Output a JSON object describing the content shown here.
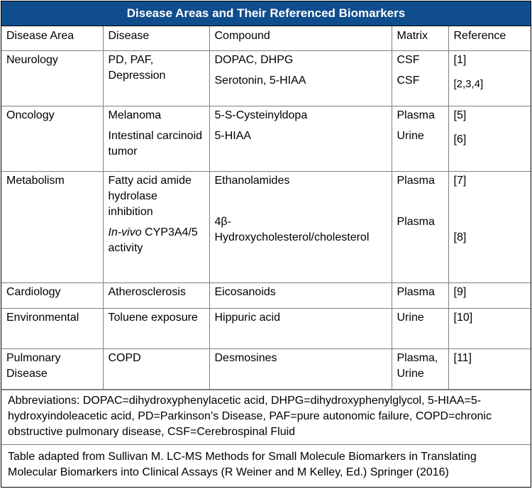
{
  "title": "Disease Areas and Their Referenced Biomarkers",
  "headers": {
    "area": "Disease Area",
    "disease": "Disease",
    "compound": "Compound",
    "matrix": "Matrix",
    "reference": "Reference"
  },
  "rows": {
    "neurology": {
      "area": "Neurology",
      "disease": "PD, PAF, Depression",
      "compound_1": "DOPAC, DHPG",
      "compound_2": "Serotonin, 5-HIAA",
      "matrix_1": "CSF",
      "matrix_2": "CSF",
      "ref_1": "[1]",
      "ref_2": "[2,3,4]"
    },
    "oncology": {
      "area": "Oncology",
      "disease_1": "Melanoma",
      "disease_2": "Intestinal carcinoid tumor",
      "compound_1": "5-S-Cysteinyldopa",
      "compound_2": "5-HIAA",
      "matrix_1": "Plasma",
      "matrix_2": "Urine",
      "ref_1": "[5]",
      "ref_2": "[6]"
    },
    "metabolism": {
      "area": "Metabolism",
      "disease_1": "Fatty acid amide hydrolase inhibition",
      "disease_2_italic": "In-vivo",
      "disease_2_rest": "CYP3A4/5 activity",
      "compound_1": "Ethanolamides",
      "compound_2a": "4β-",
      "compound_2b": "Hydroxycholesterol/cholesterol",
      "matrix_1": "Plasma",
      "matrix_2": "Plasma",
      "ref_1": "[7]",
      "ref_2": "[8]"
    },
    "cardiology": {
      "area": "Cardiology",
      "disease": "Atherosclerosis",
      "compound": "Eicosanoids",
      "matrix": "Plasma",
      "ref": "[9]"
    },
    "environmental": {
      "area": "Environmental",
      "disease": "Toluene exposure",
      "compound": "Hippuric acid",
      "matrix": "Urine",
      "ref": "[10]"
    },
    "pulmonary": {
      "area": "Pulmonary Disease",
      "disease": "COPD",
      "compound": "Desmosines",
      "matrix": "Plasma, Urine",
      "ref": "[11]"
    }
  },
  "abbreviations": "Abbreviations: DOPAC=dihydroxyphenylacetic acid, DHPG=dihydroxyphenylglycol, 5-HIAA=5-hydroxyindoleacetic acid, PD=Parkinson’s Disease, PAF=pure autonomic failure, COPD=chronic obstructive pulmonary disease, CSF=Cerebrospinal Fluid",
  "source": "Table adapted from Sullivan M. LC-MS Methods for Small Molecule Biomarkers in Translating Molecular Biomarkers into Clinical Assays (R Weiner and M Kelley, Ed.) Springer (2016)"
}
